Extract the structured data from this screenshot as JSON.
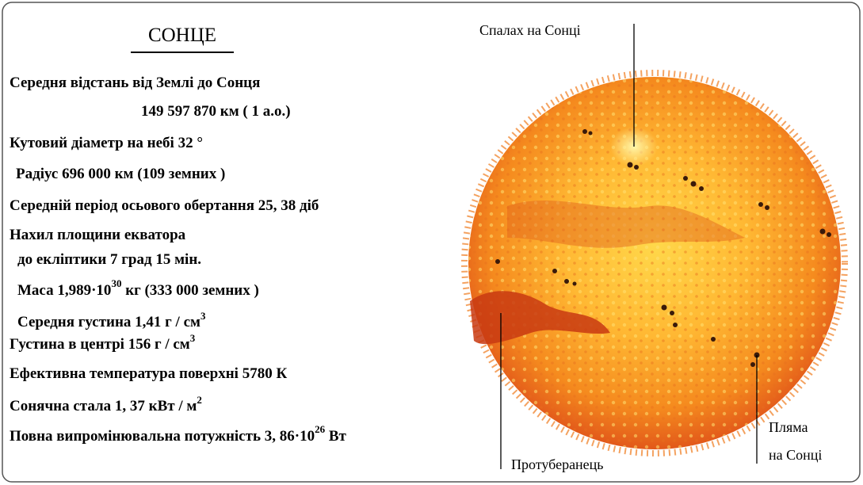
{
  "title": "СОНЦЕ",
  "facts": [
    {
      "text": "Середня відстань від Землі до Сонця"
    },
    {
      "text": "149 597 870 км ( 1 а.о.)"
    },
    {
      "text": "Кутовий діаметр на небі  32 °"
    },
    {
      "text": "Радіус 696 000 км (109  земних )"
    },
    {
      "text": "Середній період осьового обертання  25, 38 діб"
    },
    {
      "text": "Нахил площини екватора"
    },
    {
      "text": "до екліптики  7 град  15 мін."
    },
    {
      "text": "Маса 1,989·10",
      "sup": "30",
      "after": " кг  (333 000  земних )"
    },
    {
      "text": "Середня густина  1,41 г / см",
      "sup": "3"
    },
    {
      "text": "Густина в центрі 156 г / см",
      "sup": "3"
    },
    {
      "text": "Ефективна температура поверхні  5780 К"
    },
    {
      "text": "Сонячна стала 1, 37 кВт / м",
      "sup": "2"
    },
    {
      "text": "Повна випромінювальна потужність 3, 86·10",
      "sup": "26",
      "after": " Вт"
    }
  ],
  "labels": {
    "flare": "Спалах на Сонці",
    "prominence": "Протуберанець",
    "spot": [
      "Пляма",
      "на Сонці"
    ]
  }
}
